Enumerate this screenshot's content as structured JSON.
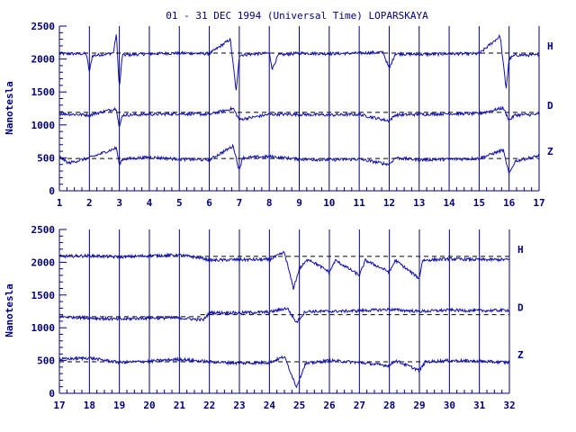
{
  "title": "01 - 31 DEC 1994 (Universal Time) LOPARSKAYA",
  "colors": {
    "ink": "#00007a",
    "trace": "#1010b0",
    "baseline": "#000000"
  },
  "chart_data": [
    {
      "type": "line",
      "panel": "top",
      "ylabel": "Nanotesla",
      "ylim": [
        0,
        2500
      ],
      "yticks": [
        0,
        500,
        1000,
        1500,
        2000,
        2500
      ],
      "xlim": [
        1,
        17
      ],
      "xticks": [
        1,
        2,
        3,
        4,
        5,
        6,
        7,
        8,
        9,
        10,
        11,
        12,
        13,
        14,
        15,
        16,
        17
      ],
      "grid": "vertical day lines",
      "series": [
        {
          "name": "H",
          "baseline": 2090,
          "points": [
            [
              1,
              2080
            ],
            [
              1.9,
              2080
            ],
            [
              2,
              1800
            ],
            [
              2.1,
              2050
            ],
            [
              2.8,
              2090
            ],
            [
              2.9,
              2380
            ],
            [
              3,
              1550
            ],
            [
              3.1,
              2060
            ],
            [
              4,
              2080
            ],
            [
              5,
              2090
            ],
            [
              6,
              2080
            ],
            [
              6.7,
              2300
            ],
            [
              6.9,
              1500
            ],
            [
              7,
              2060
            ],
            [
              8,
              2090
            ],
            [
              8.1,
              1850
            ],
            [
              8.3,
              2060
            ],
            [
              9,
              2090
            ],
            [
              10,
              2080
            ],
            [
              11,
              2090
            ],
            [
              11.8,
              2100
            ],
            [
              12,
              1850
            ],
            [
              12.2,
              2080
            ],
            [
              13,
              2070
            ],
            [
              14,
              2080
            ],
            [
              15,
              2080
            ],
            [
              15.7,
              2350
            ],
            [
              15.9,
              1550
            ],
            [
              16,
              2000
            ],
            [
              16.2,
              2060
            ],
            [
              17,
              2060
            ]
          ]
        },
        {
          "name": "D",
          "baseline": 1190,
          "points": [
            [
              1,
              1170
            ],
            [
              2,
              1150
            ],
            [
              2.9,
              1250
            ],
            [
              3,
              950
            ],
            [
              3.1,
              1150
            ],
            [
              4,
              1160
            ],
            [
              5,
              1170
            ],
            [
              6,
              1160
            ],
            [
              6.8,
              1250
            ],
            [
              7,
              1080
            ],
            [
              8,
              1160
            ],
            [
              9,
              1160
            ],
            [
              10,
              1150
            ],
            [
              11,
              1160
            ],
            [
              12,
              1060
            ],
            [
              12.2,
              1150
            ],
            [
              13,
              1160
            ],
            [
              14,
              1170
            ],
            [
              15,
              1170
            ],
            [
              15.8,
              1260
            ],
            [
              16,
              1070
            ],
            [
              16.2,
              1150
            ],
            [
              17,
              1160
            ]
          ]
        },
        {
          "name": "Z",
          "baseline": 490,
          "points": [
            [
              1,
              520
            ],
            [
              1.3,
              420
            ],
            [
              2,
              500
            ],
            [
              2.9,
              650
            ],
            [
              3,
              400
            ],
            [
              3.1,
              480
            ],
            [
              4,
              510
            ],
            [
              5,
              480
            ],
            [
              6,
              470
            ],
            [
              6.8,
              680
            ],
            [
              7,
              300
            ],
            [
              7.1,
              500
            ],
            [
              8,
              520
            ],
            [
              9,
              480
            ],
            [
              10,
              470
            ],
            [
              11,
              480
            ],
            [
              12,
              400
            ],
            [
              12.2,
              500
            ],
            [
              13,
              470
            ],
            [
              14,
              480
            ],
            [
              15,
              490
            ],
            [
              15.8,
              620
            ],
            [
              16,
              250
            ],
            [
              16.2,
              450
            ],
            [
              17,
              530
            ]
          ]
        }
      ]
    },
    {
      "type": "line",
      "panel": "bottom",
      "ylabel": "Nanotesla",
      "ylim": [
        0,
        2500
      ],
      "yticks": [
        0,
        500,
        1000,
        1500,
        2000,
        2500
      ],
      "xlim": [
        17,
        32
      ],
      "xticks": [
        17,
        18,
        19,
        20,
        21,
        22,
        23,
        24,
        25,
        26,
        27,
        28,
        29,
        30,
        31,
        32
      ],
      "grid": "vertical day lines",
      "series": [
        {
          "name": "H",
          "baseline": 2090,
          "points": [
            [
              17,
              2090
            ],
            [
              18,
              2100
            ],
            [
              19,
              2080
            ],
            [
              20,
              2100
            ],
            [
              21,
              2110
            ],
            [
              21.8,
              2060
            ],
            [
              22,
              2030
            ],
            [
              23,
              2040
            ],
            [
              24,
              2040
            ],
            [
              24.5,
              2150
            ],
            [
              24.8,
              1600
            ],
            [
              25,
              1900
            ],
            [
              25.3,
              2050
            ],
            [
              26,
              1850
            ],
            [
              26.2,
              2030
            ],
            [
              27,
              1800
            ],
            [
              27.2,
              2030
            ],
            [
              28,
              1850
            ],
            [
              28.2,
              2030
            ],
            [
              29,
              1750
            ],
            [
              29.1,
              2030
            ],
            [
              30,
              2050
            ],
            [
              31,
              2040
            ],
            [
              32,
              2040
            ]
          ]
        },
        {
          "name": "D",
          "baseline_early": 1170,
          "baseline_late": 1200,
          "points": [
            [
              17,
              1170
            ],
            [
              18,
              1150
            ],
            [
              19,
              1130
            ],
            [
              20,
              1150
            ],
            [
              21,
              1150
            ],
            [
              21.8,
              1120
            ],
            [
              22,
              1230
            ],
            [
              23,
              1230
            ],
            [
              24,
              1240
            ],
            [
              24.6,
              1300
            ],
            [
              24.9,
              1080
            ],
            [
              25.2,
              1250
            ],
            [
              26,
              1250
            ],
            [
              27,
              1260
            ],
            [
              28,
              1280
            ],
            [
              29,
              1250
            ],
            [
              30,
              1270
            ],
            [
              31,
              1260
            ],
            [
              32,
              1270
            ]
          ]
        },
        {
          "name": "Z",
          "baseline": 480,
          "points": [
            [
              17,
              520
            ],
            [
              18,
              540
            ],
            [
              19,
              470
            ],
            [
              20,
              490
            ],
            [
              21,
              520
            ],
            [
              22,
              480
            ],
            [
              23,
              460
            ],
            [
              24,
              470
            ],
            [
              24.5,
              560
            ],
            [
              24.9,
              100
            ],
            [
              25.2,
              450
            ],
            [
              26,
              500
            ],
            [
              27,
              470
            ],
            [
              28,
              420
            ],
            [
              28.2,
              500
            ],
            [
              29,
              350
            ],
            [
              29.2,
              480
            ],
            [
              30,
              500
            ],
            [
              31,
              490
            ],
            [
              32,
              470
            ]
          ]
        }
      ]
    }
  ],
  "panels": [
    {
      "ylabel": "Nanotesla",
      "yticks": [
        "0",
        "500",
        "1000",
        "1500",
        "2000",
        "2500"
      ],
      "xticks": [
        "1",
        "2",
        "3",
        "4",
        "5",
        "6",
        "7",
        "8",
        "9",
        "10",
        "11",
        "12",
        "13",
        "14",
        "15",
        "16",
        "17"
      ],
      "series_labels": [
        "H",
        "D",
        "Z"
      ]
    },
    {
      "ylabel": "Nanotesla",
      "yticks": [
        "0",
        "500",
        "1000",
        "1500",
        "2000",
        "2500"
      ],
      "xticks": [
        "17",
        "18",
        "19",
        "20",
        "21",
        "22",
        "23",
        "24",
        "25",
        "26",
        "27",
        "28",
        "29",
        "30",
        "31",
        "32"
      ],
      "series_labels": [
        "H",
        "D",
        "Z"
      ]
    }
  ]
}
